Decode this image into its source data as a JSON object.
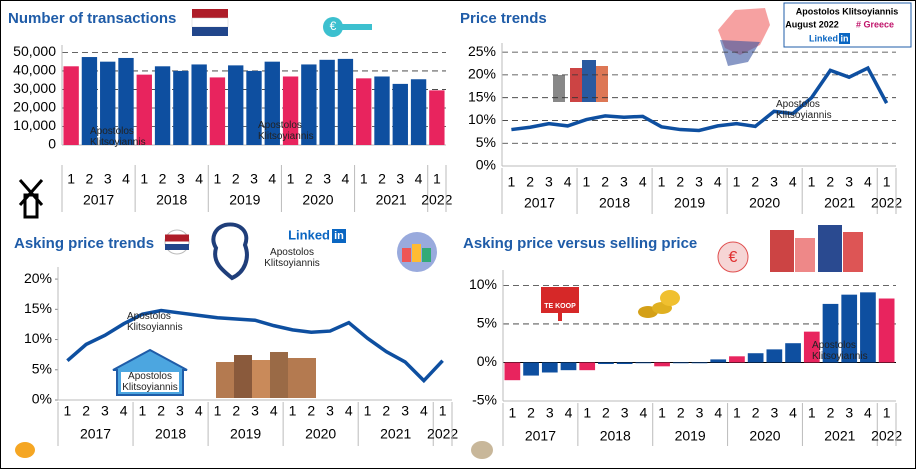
{
  "branding": {
    "name": "Apostolos Klitsoyiannis",
    "date": "August 2022",
    "tag": "# Greece",
    "network": "Linked",
    "network_mark": "in",
    "for_sale": "TE KOOP",
    "euro": "€"
  },
  "chart_data": [
    {
      "type": "bar",
      "title": "Number of transactions",
      "groups": [
        {
          "name": "2017",
          "categories": [
            "1",
            "2",
            "3",
            "4"
          ]
        },
        {
          "name": "2018",
          "categories": [
            "1",
            "2",
            "3",
            "4"
          ]
        },
        {
          "name": "2019",
          "categories": [
            "1",
            "2",
            "3",
            "4"
          ]
        },
        {
          "name": "2020",
          "categories": [
            "1",
            "2",
            "3",
            "4"
          ]
        },
        {
          "name": "2021",
          "categories": [
            "1",
            "2",
            "3",
            "4"
          ]
        },
        {
          "name": "2022",
          "categories": [
            "1"
          ]
        }
      ],
      "values": [
        42500,
        47500,
        45000,
        47000,
        38000,
        42500,
        40000,
        43500,
        36500,
        43000,
        40000,
        45000,
        37000,
        43500,
        46000,
        46500,
        36000,
        37000,
        33000,
        35500,
        29500
      ],
      "colors": [
        "#e8245e",
        "#0e4fa0",
        "#0e4fa0",
        "#0e4fa0",
        "#e8245e",
        "#0e4fa0",
        "#0e4fa0",
        "#0e4fa0",
        "#e8245e",
        "#0e4fa0",
        "#0e4fa0",
        "#0e4fa0",
        "#e8245e",
        "#0e4fa0",
        "#0e4fa0",
        "#0e4fa0",
        "#e8245e",
        "#0e4fa0",
        "#0e4fa0",
        "#0e4fa0",
        "#e8245e"
      ],
      "ylim": [
        0,
        54000
      ],
      "yticks": [
        0,
        {
          "value": 10000,
          "label": "10,000"
        },
        {
          "value": 20000,
          "label": "20,000"
        },
        {
          "value": 30000,
          "label": "30,000"
        },
        {
          "value": 40000,
          "label": "40,000"
        },
        {
          "value": 50000,
          "label": "50,000"
        }
      ],
      "grid": true,
      "watermarks": [
        [
          "Apostolos",
          "Klitsoyiannis"
        ],
        [
          "Apostolos",
          "Klitsoyiannis"
        ]
      ]
    },
    {
      "type": "line",
      "title": "Price trends",
      "color": "#0e4fa0",
      "groups": [
        {
          "name": "2017",
          "categories": [
            "1",
            "2",
            "3",
            "4"
          ]
        },
        {
          "name": "2018",
          "categories": [
            "1",
            "2",
            "3",
            "4"
          ]
        },
        {
          "name": "2019",
          "categories": [
            "1",
            "2",
            "3",
            "4"
          ]
        },
        {
          "name": "2020",
          "categories": [
            "1",
            "2",
            "3",
            "4"
          ]
        },
        {
          "name": "2021",
          "categories": [
            "1",
            "2",
            "3",
            "4"
          ]
        },
        {
          "name": "2022",
          "categories": [
            "1"
          ]
        }
      ],
      "values": [
        8,
        8.5,
        9.3,
        8.8,
        10.2,
        11,
        10.7,
        10.9,
        8.6,
        8,
        7.8,
        8.8,
        9.3,
        8.7,
        12,
        11.5,
        15,
        21,
        19.5,
        21.5,
        13.8
      ],
      "ylim": [
        0,
        27
      ],
      "yticks": [
        {
          "value": 0,
          "label": "0%"
        },
        {
          "value": 5,
          "label": "5%"
        },
        {
          "value": 10,
          "label": "10%"
        },
        {
          "value": 15,
          "label": "15%"
        },
        {
          "value": 20,
          "label": "20%"
        },
        {
          "value": 25,
          "label": "25%"
        }
      ],
      "grid": true,
      "watermarks": [
        [
          "Apostolos",
          "Klitsoyiannis"
        ]
      ]
    },
    {
      "type": "line",
      "title": "Asking price trends",
      "color": "#0e4fa0",
      "groups": [
        {
          "name": "2017",
          "categories": [
            "1",
            "2",
            "3",
            "4"
          ]
        },
        {
          "name": "2018",
          "categories": [
            "1",
            "2",
            "3",
            "4"
          ]
        },
        {
          "name": "2019",
          "categories": [
            "1",
            "2",
            "3",
            "4"
          ]
        },
        {
          "name": "2020",
          "categories": [
            "1",
            "2",
            "3",
            "4"
          ]
        },
        {
          "name": "2021",
          "categories": [
            "1",
            "2",
            "3",
            "4"
          ]
        },
        {
          "name": "2022",
          "categories": [
            "1"
          ]
        }
      ],
      "values": [
        6.5,
        9.2,
        10.7,
        12.6,
        14.2,
        14.8,
        14.4,
        14,
        13.6,
        13.4,
        13.2,
        12.3,
        11.6,
        11.2,
        11.4,
        12.8,
        10.2,
        8,
        6.3,
        3.2,
        6.5
      ],
      "ylim": [
        0,
        22
      ],
      "yticks": [
        {
          "value": 0,
          "label": "0%"
        },
        {
          "value": 5,
          "label": "5%"
        },
        {
          "value": 10,
          "label": "10%"
        },
        {
          "value": 15,
          "label": "15%"
        },
        {
          "value": 20,
          "label": "20%"
        }
      ],
      "grid": false,
      "watermarks": [
        [
          "Apostolos",
          "Klitsoyiannis"
        ],
        [
          "Apostolos",
          "Klitsoyiannis"
        ],
        [
          "Apostolos",
          "Klitsoyiannis"
        ]
      ]
    },
    {
      "type": "bar",
      "title": "Asking price versus selling price",
      "groups": [
        {
          "name": "2017",
          "categories": [
            "1",
            "2",
            "3",
            "4"
          ]
        },
        {
          "name": "2018",
          "categories": [
            "1",
            "2",
            "3",
            "4"
          ]
        },
        {
          "name": "2019",
          "categories": [
            "1",
            "2",
            "3",
            "4"
          ]
        },
        {
          "name": "2020",
          "categories": [
            "1",
            "2",
            "3",
            "4"
          ]
        },
        {
          "name": "2021",
          "categories": [
            "1",
            "2",
            "3",
            "4"
          ]
        },
        {
          "name": "2022",
          "categories": [
            "1"
          ]
        }
      ],
      "values": [
        -2.3,
        -1.7,
        -1.3,
        -1,
        -1,
        -0.2,
        -0.2,
        -0.1,
        -0.5,
        -0.1,
        -0.1,
        0.4,
        0.8,
        1.2,
        1.7,
        2.5,
        4,
        7.6,
        8.8,
        9.1,
        8.3
      ],
      "colors": [
        "#e8245e",
        "#0e4fa0",
        "#0e4fa0",
        "#0e4fa0",
        "#e8245e",
        "#0e4fa0",
        "#0e4fa0",
        "#0e4fa0",
        "#e8245e",
        "#0e4fa0",
        "#0e4fa0",
        "#0e4fa0",
        "#e8245e",
        "#0e4fa0",
        "#0e4fa0",
        "#0e4fa0",
        "#e8245e",
        "#0e4fa0",
        "#0e4fa0",
        "#0e4fa0",
        "#e8245e"
      ],
      "ylim": [
        -5,
        12
      ],
      "yticks": [
        {
          "value": -5,
          "label": "-5%"
        },
        {
          "value": 0,
          "label": "0%"
        },
        {
          "value": 5,
          "label": "5%"
        },
        {
          "value": 10,
          "label": "10%"
        }
      ],
      "grid": true,
      "watermarks": [
        [
          "Apostolos",
          "Klitsoyiannis"
        ]
      ]
    }
  ]
}
